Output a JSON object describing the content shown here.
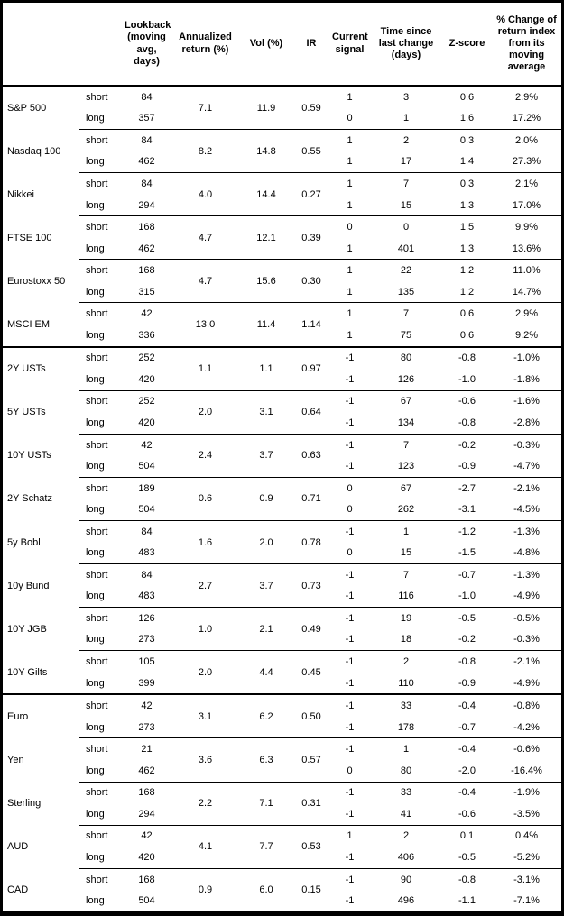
{
  "chart_data": {
    "type": "table",
    "columns": [
      "Lookback (moving avg, days)",
      "Annualized return (%)",
      "Vol (%)",
      "IR",
      "Current signal",
      "Time since last change (days)",
      "Z-score",
      "% Change of return index from its moving average"
    ],
    "row_labels": {
      "short": "short",
      "long": "long"
    },
    "sections": [
      [
        {
          "name": "S&P 500",
          "annualized_return": "7.1",
          "vol": "11.9",
          "ir": "0.59",
          "short": {
            "lookback": "84",
            "signal": "1",
            "time_since": "3",
            "z_score": "0.6",
            "pct_change": "2.9%"
          },
          "long": {
            "lookback": "357",
            "signal": "0",
            "time_since": "1",
            "z_score": "1.6",
            "pct_change": "17.2%"
          }
        },
        {
          "name": "Nasdaq 100",
          "annualized_return": "8.2",
          "vol": "14.8",
          "ir": "0.55",
          "short": {
            "lookback": "84",
            "signal": "1",
            "time_since": "2",
            "z_score": "0.3",
            "pct_change": "2.0%"
          },
          "long": {
            "lookback": "462",
            "signal": "1",
            "time_since": "17",
            "z_score": "1.4",
            "pct_change": "27.3%"
          }
        },
        {
          "name": "Nikkei",
          "annualized_return": "4.0",
          "vol": "14.4",
          "ir": "0.27",
          "short": {
            "lookback": "84",
            "signal": "1",
            "time_since": "7",
            "z_score": "0.3",
            "pct_change": "2.1%"
          },
          "long": {
            "lookback": "294",
            "signal": "1",
            "time_since": "15",
            "z_score": "1.3",
            "pct_change": "17.0%"
          }
        },
        {
          "name": "FTSE 100",
          "annualized_return": "4.7",
          "vol": "12.1",
          "ir": "0.39",
          "short": {
            "lookback": "168",
            "signal": "0",
            "time_since": "0",
            "z_score": "1.5",
            "pct_change": "9.9%"
          },
          "long": {
            "lookback": "462",
            "signal": "1",
            "time_since": "401",
            "z_score": "1.3",
            "pct_change": "13.6%"
          }
        },
        {
          "name": "Eurostoxx 50",
          "annualized_return": "4.7",
          "vol": "15.6",
          "ir": "0.30",
          "short": {
            "lookback": "168",
            "signal": "1",
            "time_since": "22",
            "z_score": "1.2",
            "pct_change": "11.0%"
          },
          "long": {
            "lookback": "315",
            "signal": "1",
            "time_since": "135",
            "z_score": "1.2",
            "pct_change": "14.7%"
          }
        },
        {
          "name": "MSCI EM",
          "annualized_return": "13.0",
          "vol": "11.4",
          "ir": "1.14",
          "short": {
            "lookback": "42",
            "signal": "1",
            "time_since": "7",
            "z_score": "0.6",
            "pct_change": "2.9%"
          },
          "long": {
            "lookback": "336",
            "signal": "1",
            "time_since": "75",
            "z_score": "0.6",
            "pct_change": "9.2%"
          }
        }
      ],
      [
        {
          "name": "2Y USTs",
          "annualized_return": "1.1",
          "vol": "1.1",
          "ir": "0.97",
          "short": {
            "lookback": "252",
            "signal": "-1",
            "time_since": "80",
            "z_score": "-0.8",
            "pct_change": "-1.0%"
          },
          "long": {
            "lookback": "420",
            "signal": "-1",
            "time_since": "126",
            "z_score": "-1.0",
            "pct_change": "-1.8%"
          }
        },
        {
          "name": "5Y USTs",
          "annualized_return": "2.0",
          "vol": "3.1",
          "ir": "0.64",
          "short": {
            "lookback": "252",
            "signal": "-1",
            "time_since": "67",
            "z_score": "-0.6",
            "pct_change": "-1.6%"
          },
          "long": {
            "lookback": "420",
            "signal": "-1",
            "time_since": "134",
            "z_score": "-0.8",
            "pct_change": "-2.8%"
          }
        },
        {
          "name": "10Y USTs",
          "annualized_return": "2.4",
          "vol": "3.7",
          "ir": "0.63",
          "short": {
            "lookback": "42",
            "signal": "-1",
            "time_since": "7",
            "z_score": "-0.2",
            "pct_change": "-0.3%"
          },
          "long": {
            "lookback": "504",
            "signal": "-1",
            "time_since": "123",
            "z_score": "-0.9",
            "pct_change": "-4.7%"
          }
        },
        {
          "name": "2Y Schatz",
          "annualized_return": "0.6",
          "vol": "0.9",
          "ir": "0.71",
          "short": {
            "lookback": "189",
            "signal": "0",
            "time_since": "67",
            "z_score": "-2.7",
            "pct_change": "-2.1%"
          },
          "long": {
            "lookback": "504",
            "signal": "0",
            "time_since": "262",
            "z_score": "-3.1",
            "pct_change": "-4.5%"
          }
        },
        {
          "name": "5y Bobl",
          "annualized_return": "1.6",
          "vol": "2.0",
          "ir": "0.78",
          "short": {
            "lookback": "84",
            "signal": "-1",
            "time_since": "1",
            "z_score": "-1.2",
            "pct_change": "-1.3%"
          },
          "long": {
            "lookback": "483",
            "signal": "0",
            "time_since": "15",
            "z_score": "-1.5",
            "pct_change": "-4.8%"
          }
        },
        {
          "name": "10y Bund",
          "annualized_return": "2.7",
          "vol": "3.7",
          "ir": "0.73",
          "short": {
            "lookback": "84",
            "signal": "-1",
            "time_since": "7",
            "z_score": "-0.7",
            "pct_change": "-1.3%"
          },
          "long": {
            "lookback": "483",
            "signal": "-1",
            "time_since": "116",
            "z_score": "-1.0",
            "pct_change": "-4.9%"
          }
        },
        {
          "name": "10Y JGB",
          "annualized_return": "1.0",
          "vol": "2.1",
          "ir": "0.49",
          "short": {
            "lookback": "126",
            "signal": "-1",
            "time_since": "19",
            "z_score": "-0.5",
            "pct_change": "-0.5%"
          },
          "long": {
            "lookback": "273",
            "signal": "-1",
            "time_since": "18",
            "z_score": "-0.2",
            "pct_change": "-0.3%"
          }
        },
        {
          "name": "10Y Gilts",
          "annualized_return": "2.0",
          "vol": "4.4",
          "ir": "0.45",
          "short": {
            "lookback": "105",
            "signal": "-1",
            "time_since": "2",
            "z_score": "-0.8",
            "pct_change": "-2.1%"
          },
          "long": {
            "lookback": "399",
            "signal": "-1",
            "time_since": "110",
            "z_score": "-0.9",
            "pct_change": "-4.9%"
          }
        }
      ],
      [
        {
          "name": "Euro",
          "annualized_return": "3.1",
          "vol": "6.2",
          "ir": "0.50",
          "short": {
            "lookback": "42",
            "signal": "-1",
            "time_since": "33",
            "z_score": "-0.4",
            "pct_change": "-0.8%"
          },
          "long": {
            "lookback": "273",
            "signal": "-1",
            "time_since": "178",
            "z_score": "-0.7",
            "pct_change": "-4.2%"
          }
        },
        {
          "name": "Yen",
          "annualized_return": "3.6",
          "vol": "6.3",
          "ir": "0.57",
          "short": {
            "lookback": "21",
            "signal": "-1",
            "time_since": "1",
            "z_score": "-0.4",
            "pct_change": "-0.6%"
          },
          "long": {
            "lookback": "462",
            "signal": "0",
            "time_since": "80",
            "z_score": "-2.0",
            "pct_change": "-16.4%"
          }
        },
        {
          "name": "Sterling",
          "annualized_return": "2.2",
          "vol": "7.1",
          "ir": "0.31",
          "short": {
            "lookback": "168",
            "signal": "-1",
            "time_since": "33",
            "z_score": "-0.4",
            "pct_change": "-1.9%"
          },
          "long": {
            "lookback": "294",
            "signal": "-1",
            "time_since": "41",
            "z_score": "-0.6",
            "pct_change": "-3.5%"
          }
        },
        {
          "name": "AUD",
          "annualized_return": "4.1",
          "vol": "7.7",
          "ir": "0.53",
          "short": {
            "lookback": "42",
            "signal": "1",
            "time_since": "2",
            "z_score": "0.1",
            "pct_change": "0.4%"
          },
          "long": {
            "lookback": "420",
            "signal": "-1",
            "time_since": "406",
            "z_score": "-0.5",
            "pct_change": "-5.2%"
          }
        },
        {
          "name": "CAD",
          "annualized_return": "0.9",
          "vol": "6.0",
          "ir": "0.15",
          "short": {
            "lookback": "168",
            "signal": "-1",
            "time_since": "90",
            "z_score": "-0.8",
            "pct_change": "-3.1%"
          },
          "long": {
            "lookback": "504",
            "signal": "-1",
            "time_since": "496",
            "z_score": "-1.1",
            "pct_change": "-7.1%"
          }
        }
      ]
    ]
  }
}
